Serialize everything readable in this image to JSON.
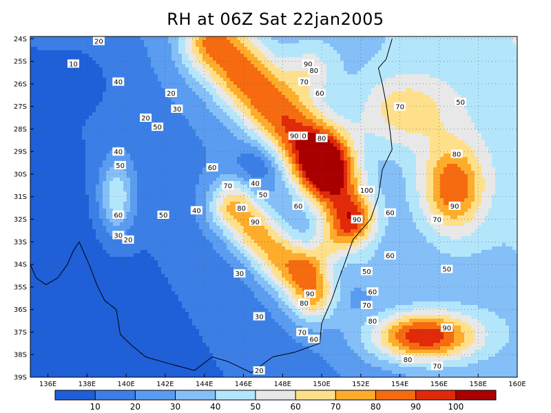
{
  "chart_data": {
    "type": "contour map",
    "title": "RH at 06Z Sat 22jan2005",
    "x_ticks": [
      "136E",
      "138E",
      "140E",
      "142E",
      "144E",
      "146E",
      "148E",
      "150E",
      "152E",
      "154E",
      "156E",
      "158E",
      "160E"
    ],
    "y_ticks": [
      "24S",
      "25S",
      "26S",
      "27S",
      "28S",
      "29S",
      "30S",
      "31S",
      "32S",
      "33S",
      "34S",
      "35S",
      "36S",
      "37S",
      "38S",
      "39S"
    ],
    "xlim": [
      135.1,
      160
    ],
    "ylim": [
      -39,
      -23.9
    ],
    "grid": "dotted",
    "levels": [
      10,
      20,
      30,
      40,
      50,
      60,
      70,
      80,
      90,
      100
    ],
    "colorbar_labels": [
      "10",
      "20",
      "30",
      "40",
      "50",
      "60",
      "70",
      "80",
      "90",
      "100"
    ],
    "colors": [
      "#1f5fd8",
      "#3b7fe6",
      "#5a9cf0",
      "#85bff8",
      "#b4e6fb",
      "#e8e8e8",
      "#fee08b",
      "#fdad2b",
      "#f66b10",
      "#e02a0a",
      "#a80000"
    ],
    "contour_labels": [
      {
        "text": "20",
        "lon": 141.0,
        "lat": -27.5
      },
      {
        "text": "10",
        "lon": 137.3,
        "lat": -25.1
      },
      {
        "text": "40",
        "lon": 139.6,
        "lat": -25.9
      },
      {
        "text": "20",
        "lon": 142.3,
        "lat": -26.4
      },
      {
        "text": "30",
        "lon": 142.6,
        "lat": -27.1
      },
      {
        "text": "20",
        "lon": 138.6,
        "lat": -24.1
      },
      {
        "text": "50",
        "lon": 141.6,
        "lat": -27.9
      },
      {
        "text": "40",
        "lon": 139.6,
        "lat": -29.0
      },
      {
        "text": "50",
        "lon": 139.7,
        "lat": -29.6
      },
      {
        "text": "60",
        "lon": 139.6,
        "lat": -31.8
      },
      {
        "text": "30",
        "lon": 139.6,
        "lat": -32.7
      },
      {
        "text": "20",
        "lon": 140.1,
        "lat": -32.9
      },
      {
        "text": "50",
        "lon": 141.9,
        "lat": -31.8
      },
      {
        "text": "40",
        "lon": 143.6,
        "lat": -31.6
      },
      {
        "text": "60",
        "lon": 144.4,
        "lat": -29.7
      },
      {
        "text": "70",
        "lon": 145.2,
        "lat": -30.5
      },
      {
        "text": "40",
        "lon": 146.6,
        "lat": -30.4
      },
      {
        "text": "50",
        "lon": 147.0,
        "lat": -30.9
      },
      {
        "text": "80",
        "lon": 145.9,
        "lat": -31.5
      },
      {
        "text": "90",
        "lon": 146.6,
        "lat": -32.1
      },
      {
        "text": "60",
        "lon": 148.8,
        "lat": -31.4
      },
      {
        "text": "30",
        "lon": 145.8,
        "lat": -34.4
      },
      {
        "text": "30",
        "lon": 146.8,
        "lat": -36.3
      },
      {
        "text": "20",
        "lon": 146.8,
        "lat": -38.7
      },
      {
        "text": "90",
        "lon": 149.3,
        "lat": -25.1
      },
      {
        "text": "80",
        "lon": 149.6,
        "lat": -25.4
      },
      {
        "text": "70",
        "lon": 149.1,
        "lat": -25.9
      },
      {
        "text": "60",
        "lon": 149.9,
        "lat": -26.4
      },
      {
        "text": "90",
        "lon": 148.6,
        "lat": -28.3
      },
      {
        "text": "0",
        "lon": 149.1,
        "lat": -28.3
      },
      {
        "text": "80",
        "lon": 150.0,
        "lat": -28.4
      },
      {
        "text": "100",
        "lon": 152.3,
        "lat": -30.7
      },
      {
        "text": "90",
        "lon": 151.8,
        "lat": -32.0
      },
      {
        "text": "90",
        "lon": 149.4,
        "lat": -35.3
      },
      {
        "text": "80",
        "lon": 149.1,
        "lat": -35.7
      },
      {
        "text": "70",
        "lon": 149.0,
        "lat": -37.0
      },
      {
        "text": "60",
        "lon": 149.6,
        "lat": -37.3
      },
      {
        "text": "50",
        "lon": 152.3,
        "lat": -34.3
      },
      {
        "text": "70",
        "lon": 154.0,
        "lat": -27.0
      },
      {
        "text": "50",
        "lon": 157.1,
        "lat": -26.8
      },
      {
        "text": "80",
        "lon": 156.9,
        "lat": -29.1
      },
      {
        "text": "90",
        "lon": 156.8,
        "lat": -31.4
      },
      {
        "text": "60",
        "lon": 153.5,
        "lat": -31.7
      },
      {
        "text": "70",
        "lon": 155.9,
        "lat": -32.0
      },
      {
        "text": "60",
        "lon": 153.5,
        "lat": -33.6
      },
      {
        "text": "50",
        "lon": 156.4,
        "lat": -34.2
      },
      {
        "text": "60",
        "lon": 152.6,
        "lat": -35.2
      },
      {
        "text": "70",
        "lon": 152.3,
        "lat": -35.8
      },
      {
        "text": "80",
        "lon": 152.6,
        "lat": -36.5
      },
      {
        "text": "90",
        "lon": 156.4,
        "lat": -36.8
      },
      {
        "text": "80",
        "lon": 154.4,
        "lat": -38.2
      },
      {
        "text": "70",
        "lon": 155.9,
        "lat": -38.5
      }
    ]
  }
}
